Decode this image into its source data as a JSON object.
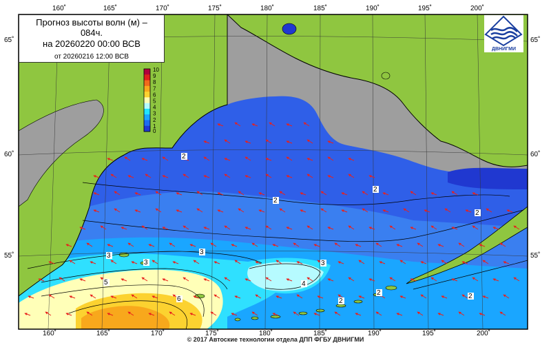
{
  "title": {
    "line1": "Прогноз высоты волн (м) –",
    "line2": "084ч.",
    "line3": "на 20260220 00:00 ВСВ",
    "line4": "от 20260216 12:00 ВСВ"
  },
  "logo": {
    "text": "ДВНИГМИ"
  },
  "copyright": "© 2017 Автоские технологии отдела ДПП ФГБУ ДВНИГМИ",
  "colorbar": {
    "labels": [
      "10",
      "9",
      "8",
      "7",
      "6",
      "5",
      "4",
      "3",
      "2",
      "1",
      "0"
    ],
    "colors": [
      "#b0003c",
      "#e0201c",
      "#f06a1c",
      "#f8a81c",
      "#fcd230",
      "#ffffb4",
      "#b4fcff",
      "#20e4ff",
      "#1aa6ff",
      "#1e6cf0",
      "#2038d0"
    ]
  },
  "axes": {
    "top_lon": [
      "160˚",
      "165˚",
      "170˚",
      "175˚",
      "180˚",
      "185˚",
      "190˚",
      "195˚",
      "200˚"
    ],
    "bottom_lon": [
      "160˚",
      "165˚",
      "170˚",
      "175˚",
      "180˚",
      "185˚",
      "190˚",
      "195˚",
      "200˚"
    ],
    "left_lat": [
      "65˚",
      "60˚",
      "55˚"
    ],
    "right_lat": [
      "65˚",
      "60˚",
      "55˚"
    ]
  },
  "contour_labels": [
    "2",
    "2",
    "2",
    "2",
    "2",
    "2",
    "2",
    "3",
    "3",
    "3",
    "3",
    "4",
    "5",
    "6"
  ],
  "map_colors": {
    "land": "#8fc640",
    "ice": "#9e9e9e",
    "sea_deep": "#2b56e6",
    "arrow": "#e8201c"
  }
}
